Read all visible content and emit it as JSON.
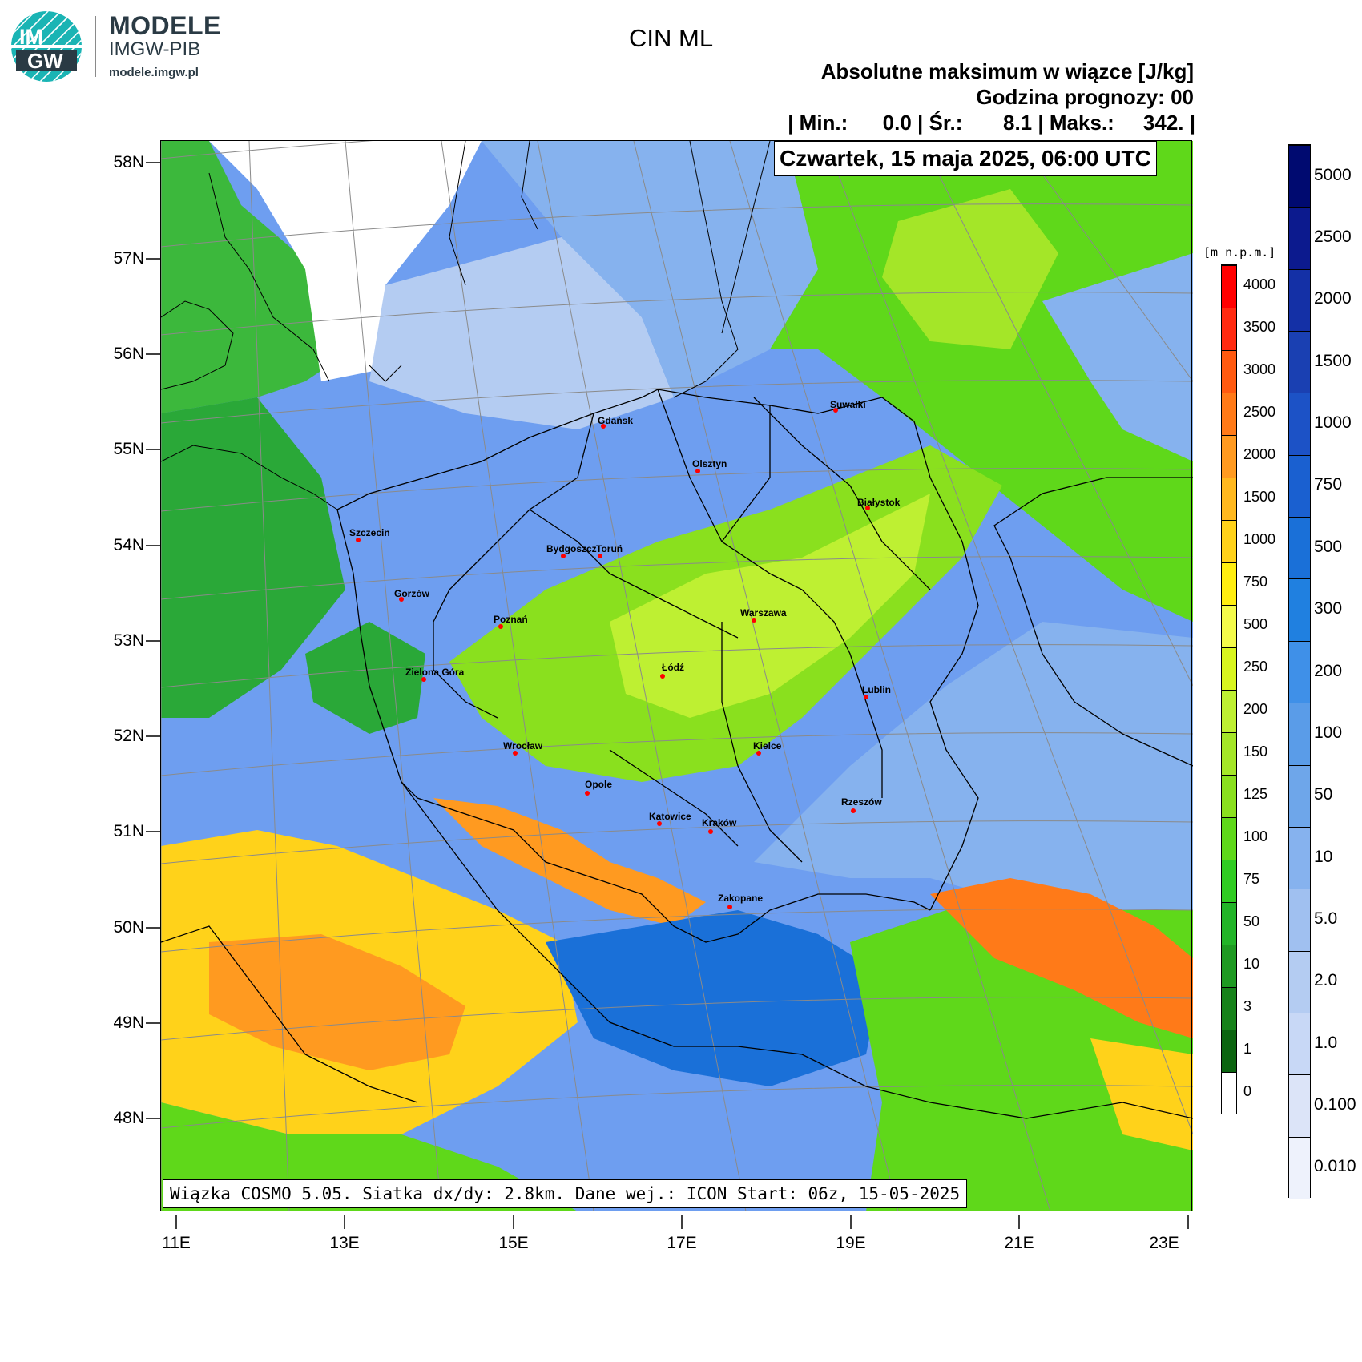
{
  "logo": {
    "badge_top": "IM",
    "badge_bottom": "GW",
    "line1": "MODELE",
    "line2": "IMGW-PIB",
    "line3": "modele.imgw.pl"
  },
  "header": {
    "title": "CIN ML",
    "subtitle": "Absolutne maksimum w wiązce [J/kg]",
    "forecast_hour": "Godzina prognozy: 00",
    "stats_line": "| Min.:      0.0 | Śr.:       8.1 | Maks.:     342. |",
    "date": "Czwartek, 15 maja 2025, 06:00 UTC"
  },
  "footer": {
    "text": "Wiązka COSMO 5.05. Siatka dx/dy: 2.8km. Dane wej.: ICON Start: 06z, 15-05-2025"
  },
  "axes": {
    "lat_labels": [
      "58N",
      "57N",
      "56N",
      "55N",
      "54N",
      "53N",
      "52N",
      "51N",
      "50N",
      "49N",
      "48N"
    ],
    "lon_labels": [
      "11E",
      "13E",
      "15E",
      "17E",
      "19E",
      "21E",
      "23E"
    ]
  },
  "cities": [
    {
      "name": "Gdańsk"
    },
    {
      "name": "Olsztyn"
    },
    {
      "name": "Suwałki"
    },
    {
      "name": "Białystok"
    },
    {
      "name": "Szczecin"
    },
    {
      "name": "Bydgoszcz"
    },
    {
      "name": "Toruń"
    },
    {
      "name": "Gorzów"
    },
    {
      "name": "Poznań"
    },
    {
      "name": "Warszawa"
    },
    {
      "name": "Zielona Góra"
    },
    {
      "name": "Łódź"
    },
    {
      "name": "Lublin"
    },
    {
      "name": "Wrocław"
    },
    {
      "name": "Kielce"
    },
    {
      "name": "Opole"
    },
    {
      "name": "Rzeszów"
    },
    {
      "name": "Katowice"
    },
    {
      "name": "Kraków"
    },
    {
      "name": "Zakopane"
    }
  ],
  "elevation_legend": {
    "unit": "[m n.p.m.]",
    "levels": [
      "4000",
      "3500",
      "3000",
      "2500",
      "2000",
      "1500",
      "1000",
      "750",
      "500",
      "250",
      "200",
      "150",
      "125",
      "100",
      "75",
      "50",
      "10",
      "3",
      "1",
      "0"
    ],
    "colors": [
      "#ff0000",
      "#ff2a10",
      "#ff5a10",
      "#ff7a18",
      "#ff9a20",
      "#ffb81e",
      "#ffd21a",
      "#ffee10",
      "#f4fb4a",
      "#d8f51e",
      "#bef032",
      "#a4e628",
      "#8ae01e",
      "#5fd81a",
      "#2fcc22",
      "#22b428",
      "#1e9a22",
      "#16821a",
      "#0b6410",
      "#ffffff"
    ]
  },
  "cin_legend": {
    "levels": [
      "5000",
      "2500",
      "2000",
      "1500",
      "1000",
      "750",
      "500",
      "300",
      "200",
      "100",
      "50",
      "10",
      "5.0",
      "2.0",
      "1.0",
      "0.100",
      "0.010"
    ],
    "colors": [
      "#000a70",
      "#0c1a8e",
      "#1430a6",
      "#1a40b2",
      "#1c52c6",
      "#1a60d0",
      "#1a70d8",
      "#2080e0",
      "#3f90e8",
      "#5a9ce8",
      "#6ea6ea",
      "#86b2ee",
      "#a0c0f0",
      "#b4ccf2",
      "#c8d8f6",
      "#dce4f8",
      "#eef2fc"
    ]
  }
}
